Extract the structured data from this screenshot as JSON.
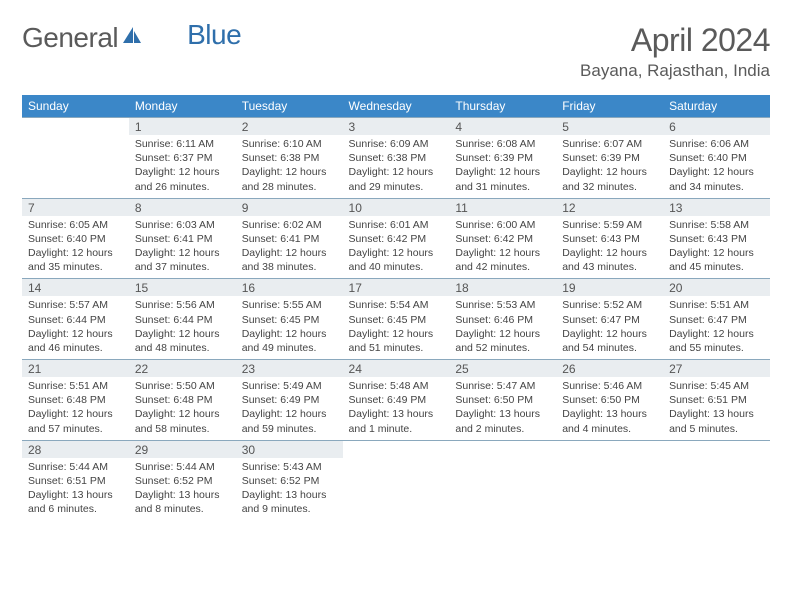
{
  "brand": {
    "name_part1": "General",
    "name_part2": "Blue",
    "part2_color": "#2f6fab",
    "icon_color": "#2f6fab"
  },
  "title": "April 2024",
  "location": "Bayana, Rajasthan, India",
  "colors": {
    "header_bg": "#3b87c8",
    "header_text": "#ffffff",
    "daynum_bg": "#e9edf0",
    "border": "#8aa8bd",
    "text": "#444444",
    "title_text": "#5a5a5a"
  },
  "weekdays": [
    "Sunday",
    "Monday",
    "Tuesday",
    "Wednesday",
    "Thursday",
    "Friday",
    "Saturday"
  ],
  "weeks": [
    [
      null,
      {
        "n": "1",
        "sr": "6:11 AM",
        "ss": "6:37 PM",
        "dl": "12 hours and 26 minutes."
      },
      {
        "n": "2",
        "sr": "6:10 AM",
        "ss": "6:38 PM",
        "dl": "12 hours and 28 minutes."
      },
      {
        "n": "3",
        "sr": "6:09 AM",
        "ss": "6:38 PM",
        "dl": "12 hours and 29 minutes."
      },
      {
        "n": "4",
        "sr": "6:08 AM",
        "ss": "6:39 PM",
        "dl": "12 hours and 31 minutes."
      },
      {
        "n": "5",
        "sr": "6:07 AM",
        "ss": "6:39 PM",
        "dl": "12 hours and 32 minutes."
      },
      {
        "n": "6",
        "sr": "6:06 AM",
        "ss": "6:40 PM",
        "dl": "12 hours and 34 minutes."
      }
    ],
    [
      {
        "n": "7",
        "sr": "6:05 AM",
        "ss": "6:40 PM",
        "dl": "12 hours and 35 minutes."
      },
      {
        "n": "8",
        "sr": "6:03 AM",
        "ss": "6:41 PM",
        "dl": "12 hours and 37 minutes."
      },
      {
        "n": "9",
        "sr": "6:02 AM",
        "ss": "6:41 PM",
        "dl": "12 hours and 38 minutes."
      },
      {
        "n": "10",
        "sr": "6:01 AM",
        "ss": "6:42 PM",
        "dl": "12 hours and 40 minutes."
      },
      {
        "n": "11",
        "sr": "6:00 AM",
        "ss": "6:42 PM",
        "dl": "12 hours and 42 minutes."
      },
      {
        "n": "12",
        "sr": "5:59 AM",
        "ss": "6:43 PM",
        "dl": "12 hours and 43 minutes."
      },
      {
        "n": "13",
        "sr": "5:58 AM",
        "ss": "6:43 PM",
        "dl": "12 hours and 45 minutes."
      }
    ],
    [
      {
        "n": "14",
        "sr": "5:57 AM",
        "ss": "6:44 PM",
        "dl": "12 hours and 46 minutes."
      },
      {
        "n": "15",
        "sr": "5:56 AM",
        "ss": "6:44 PM",
        "dl": "12 hours and 48 minutes."
      },
      {
        "n": "16",
        "sr": "5:55 AM",
        "ss": "6:45 PM",
        "dl": "12 hours and 49 minutes."
      },
      {
        "n": "17",
        "sr": "5:54 AM",
        "ss": "6:45 PM",
        "dl": "12 hours and 51 minutes."
      },
      {
        "n": "18",
        "sr": "5:53 AM",
        "ss": "6:46 PM",
        "dl": "12 hours and 52 minutes."
      },
      {
        "n": "19",
        "sr": "5:52 AM",
        "ss": "6:47 PM",
        "dl": "12 hours and 54 minutes."
      },
      {
        "n": "20",
        "sr": "5:51 AM",
        "ss": "6:47 PM",
        "dl": "12 hours and 55 minutes."
      }
    ],
    [
      {
        "n": "21",
        "sr": "5:51 AM",
        "ss": "6:48 PM",
        "dl": "12 hours and 57 minutes."
      },
      {
        "n": "22",
        "sr": "5:50 AM",
        "ss": "6:48 PM",
        "dl": "12 hours and 58 minutes."
      },
      {
        "n": "23",
        "sr": "5:49 AM",
        "ss": "6:49 PM",
        "dl": "12 hours and 59 minutes."
      },
      {
        "n": "24",
        "sr": "5:48 AM",
        "ss": "6:49 PM",
        "dl": "13 hours and 1 minute."
      },
      {
        "n": "25",
        "sr": "5:47 AM",
        "ss": "6:50 PM",
        "dl": "13 hours and 2 minutes."
      },
      {
        "n": "26",
        "sr": "5:46 AM",
        "ss": "6:50 PM",
        "dl": "13 hours and 4 minutes."
      },
      {
        "n": "27",
        "sr": "5:45 AM",
        "ss": "6:51 PM",
        "dl": "13 hours and 5 minutes."
      }
    ],
    [
      {
        "n": "28",
        "sr": "5:44 AM",
        "ss": "6:51 PM",
        "dl": "13 hours and 6 minutes."
      },
      {
        "n": "29",
        "sr": "5:44 AM",
        "ss": "6:52 PM",
        "dl": "13 hours and 8 minutes."
      },
      {
        "n": "30",
        "sr": "5:43 AM",
        "ss": "6:52 PM",
        "dl": "13 hours and 9 minutes."
      },
      null,
      null,
      null,
      null
    ]
  ],
  "labels": {
    "sunrise": "Sunrise:",
    "sunset": "Sunset:",
    "daylight": "Daylight:"
  }
}
